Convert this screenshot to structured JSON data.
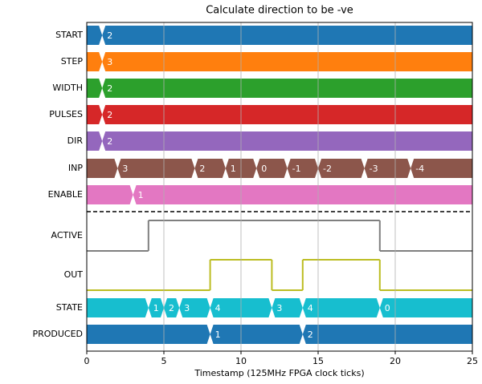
{
  "chart_data": {
    "type": "timing",
    "title": "Calculate direction to be -ve",
    "x_label": "Timestamp (125MHz FPGA clock ticks)",
    "xlim": [
      0,
      25
    ],
    "xticks": [
      0,
      5,
      10,
      15,
      20,
      25
    ],
    "grid": true,
    "signals": [
      {
        "name": "START",
        "kind": "bus",
        "color": "#1f77b4",
        "times": [
          0,
          1
        ],
        "values": [
          null,
          2
        ]
      },
      {
        "name": "STEP",
        "kind": "bus",
        "color": "#ff7f0e",
        "times": [
          0,
          1
        ],
        "values": [
          null,
          3
        ]
      },
      {
        "name": "WIDTH",
        "kind": "bus",
        "color": "#2ca02c",
        "times": [
          0,
          1
        ],
        "values": [
          null,
          2
        ]
      },
      {
        "name": "PULSES",
        "kind": "bus",
        "color": "#d62728",
        "times": [
          0,
          1
        ],
        "values": [
          null,
          2
        ]
      },
      {
        "name": "DIR",
        "kind": "bus",
        "color": "#9467bd",
        "times": [
          0,
          1
        ],
        "values": [
          null,
          2
        ]
      },
      {
        "name": "INP",
        "kind": "bus",
        "color": "#8c564b",
        "times": [
          0,
          2,
          7,
          9,
          11,
          13,
          15,
          18,
          21
        ],
        "values": [
          null,
          3,
          2,
          1,
          0,
          -1,
          -2,
          -3,
          -4
        ]
      },
      {
        "name": "ENABLE",
        "kind": "bus",
        "color": "#e377c2",
        "times": [
          0,
          3
        ],
        "values": [
          null,
          1
        ]
      },
      {
        "name": "ACTIVE",
        "kind": "wave",
        "color": "#7f7f7f",
        "times": [
          0,
          4,
          19
        ],
        "values": [
          0,
          1,
          0
        ]
      },
      {
        "name": "OUT",
        "kind": "wave",
        "color": "#bcbd22",
        "times": [
          0,
          8,
          12,
          14,
          19
        ],
        "values": [
          0,
          1,
          0,
          1,
          0
        ]
      },
      {
        "name": "STATE",
        "kind": "bus",
        "color": "#17becf",
        "times": [
          0,
          4,
          5,
          6,
          8,
          12,
          14,
          19
        ],
        "values": [
          null,
          1,
          2,
          3,
          4,
          3,
          4,
          0
        ]
      },
      {
        "name": "PRODUCED",
        "kind": "bus",
        "color": "#1f77b4",
        "times": [
          0,
          8,
          14
        ],
        "values": [
          null,
          1,
          2
        ]
      }
    ]
  }
}
